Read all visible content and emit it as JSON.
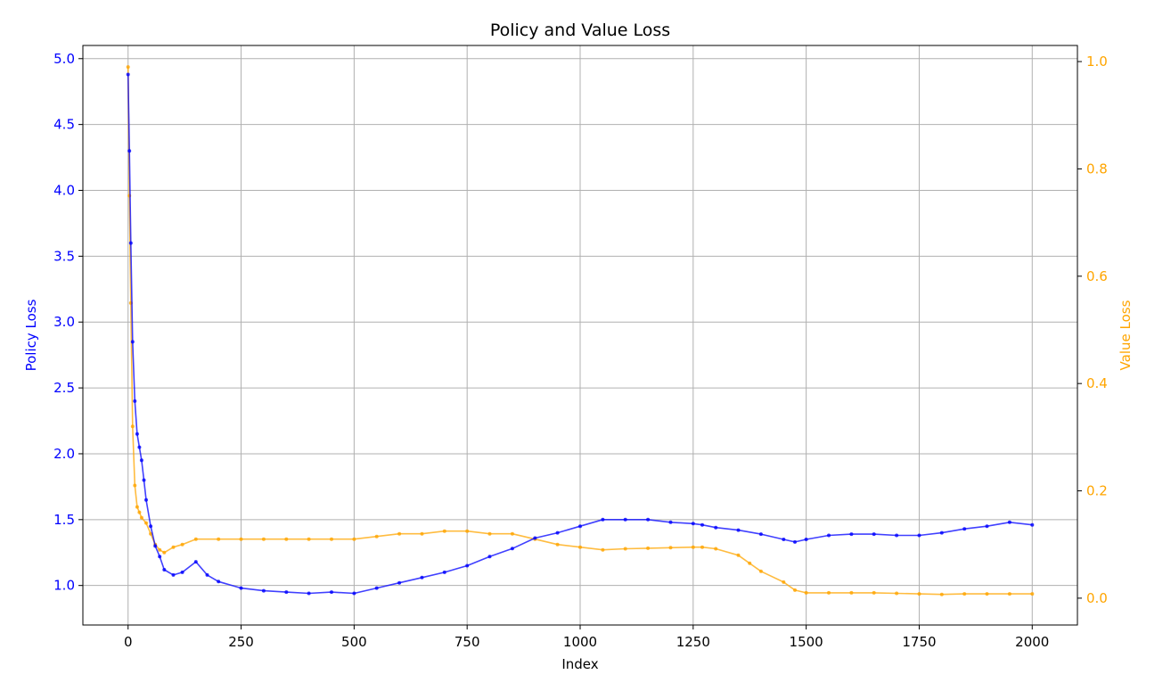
{
  "chart_data": {
    "type": "line",
    "title": "Policy and Value Loss",
    "xlabel": "Index",
    "ylabel_left": "Policy Loss",
    "ylabel_right": "Value Loss",
    "xlim": [
      -100,
      2100
    ],
    "ylim_left": [
      0.7,
      5.1
    ],
    "ylim_right": [
      -0.05,
      1.03
    ],
    "x_ticks": [
      0,
      250,
      500,
      750,
      1000,
      1250,
      1500,
      1750,
      2000
    ],
    "y_left_ticks": [
      1.0,
      1.5,
      2.0,
      2.5,
      3.0,
      3.5,
      4.0,
      4.5,
      5.0
    ],
    "y_right_ticks": [
      0.0,
      0.2,
      0.4,
      0.6,
      0.8,
      1.0
    ],
    "grid": true,
    "colors": {
      "policy": "#0000ff",
      "value": "#ffa500"
    },
    "series": [
      {
        "name": "Policy Loss",
        "axis": "left",
        "x": [
          0,
          3,
          6,
          10,
          15,
          20,
          25,
          30,
          35,
          40,
          50,
          60,
          70,
          80,
          100,
          120,
          150,
          175,
          200,
          250,
          300,
          350,
          400,
          450,
          500,
          550,
          600,
          650,
          700,
          750,
          800,
          850,
          900,
          950,
          1000,
          1050,
          1100,
          1150,
          1200,
          1250,
          1270,
          1300,
          1350,
          1400,
          1450,
          1475,
          1500,
          1550,
          1600,
          1650,
          1700,
          1750,
          1800,
          1850,
          1900,
          1950,
          2000
        ],
        "values": [
          4.88,
          4.3,
          3.6,
          2.85,
          2.4,
          2.15,
          2.05,
          1.95,
          1.8,
          1.65,
          1.45,
          1.3,
          1.22,
          1.12,
          1.08,
          1.1,
          1.18,
          1.08,
          1.03,
          0.98,
          0.96,
          0.95,
          0.94,
          0.95,
          0.94,
          0.98,
          1.02,
          1.06,
          1.1,
          1.15,
          1.22,
          1.28,
          1.36,
          1.4,
          1.45,
          1.5,
          1.5,
          1.5,
          1.48,
          1.47,
          1.46,
          1.44,
          1.42,
          1.39,
          1.35,
          1.33,
          1.35,
          1.38,
          1.39,
          1.39,
          1.38,
          1.38,
          1.4,
          1.43,
          1.45,
          1.48,
          1.46
        ]
      },
      {
        "name": "Value Loss",
        "axis": "right",
        "x": [
          0,
          3,
          6,
          10,
          15,
          20,
          25,
          30,
          40,
          50,
          60,
          70,
          80,
          100,
          120,
          150,
          200,
          250,
          300,
          350,
          400,
          450,
          500,
          550,
          600,
          650,
          700,
          750,
          800,
          850,
          900,
          950,
          1000,
          1050,
          1100,
          1150,
          1200,
          1250,
          1270,
          1300,
          1350,
          1375,
          1400,
          1450,
          1475,
          1500,
          1550,
          1600,
          1650,
          1700,
          1750,
          1800,
          1850,
          1900,
          1950,
          2000
        ],
        "values": [
          0.99,
          0.75,
          0.55,
          0.32,
          0.21,
          0.17,
          0.16,
          0.15,
          0.14,
          0.12,
          0.1,
          0.09,
          0.085,
          0.095,
          0.1,
          0.11,
          0.11,
          0.11,
          0.11,
          0.11,
          0.11,
          0.11,
          0.11,
          0.115,
          0.12,
          0.12,
          0.125,
          0.125,
          0.12,
          0.12,
          0.11,
          0.1,
          0.095,
          0.09,
          0.092,
          0.093,
          0.094,
          0.095,
          0.095,
          0.092,
          0.08,
          0.065,
          0.05,
          0.03,
          0.015,
          0.01,
          0.01,
          0.01,
          0.01,
          0.009,
          0.008,
          0.007,
          0.008,
          0.008,
          0.008,
          0.008
        ]
      }
    ]
  }
}
